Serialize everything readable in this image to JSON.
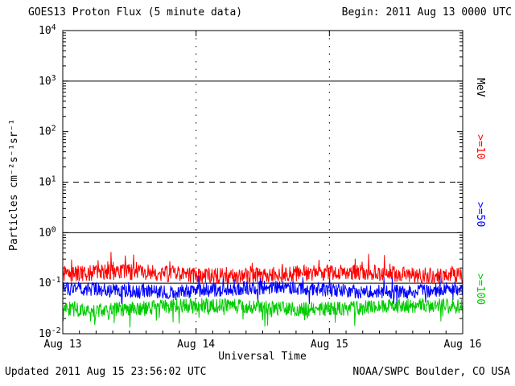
{
  "chart_data": {
    "type": "line",
    "title": "GOES13 Proton Flux (5 minute data)",
    "begin_label": "Begin: 2011 Aug 13 0000 UTC",
    "xlabel": "Universal Time",
    "ylabel": "Particles cm⁻²s⁻¹sr⁻¹",
    "right_axis_label": "MeV",
    "x_ticks": [
      "Aug 13",
      "Aug 14",
      "Aug 15",
      "Aug 16"
    ],
    "y_tick_exponents": [
      "4",
      "3",
      "2",
      "1",
      "0",
      "-1",
      "-2"
    ],
    "ylim_log10": [
      -2,
      4
    ],
    "x_range_days": 3,
    "points_per_day": 288,
    "grid": {
      "h_solid_log10": [
        3,
        0,
        -1
      ],
      "h_dashed_log10": [
        1
      ],
      "v_dotted_days": [
        1,
        2
      ]
    },
    "series": [
      {
        "name": ">=10",
        "unit": "MeV",
        "color": "#ff0000",
        "baseline_flux": 0.15,
        "log10_mean": -0.82,
        "log10_noise_dex": 0.16,
        "spike_prob": 0.05,
        "spike_amp_dex": 0.3,
        "spike_dir": 1
      },
      {
        "name": ">=50",
        "unit": "MeV",
        "color": "#0000ff",
        "baseline_flux": 0.07,
        "log10_mean": -1.13,
        "log10_noise_dex": 0.14,
        "spike_prob": 0.05,
        "spike_amp_dex": 0.25,
        "spike_dir": 0
      },
      {
        "name": ">=100",
        "unit": "MeV",
        "color": "#00cc00",
        "baseline_flux": 0.032,
        "log10_mean": -1.48,
        "log10_noise_dex": 0.15,
        "spike_prob": 0.05,
        "spike_amp_dex": 0.3,
        "spike_dir": -1
      }
    ],
    "footer": {
      "updated": "Updated 2011 Aug 15 23:56:02 UTC",
      "credit": "NOAA/SWPC Boulder, CO USA"
    }
  }
}
